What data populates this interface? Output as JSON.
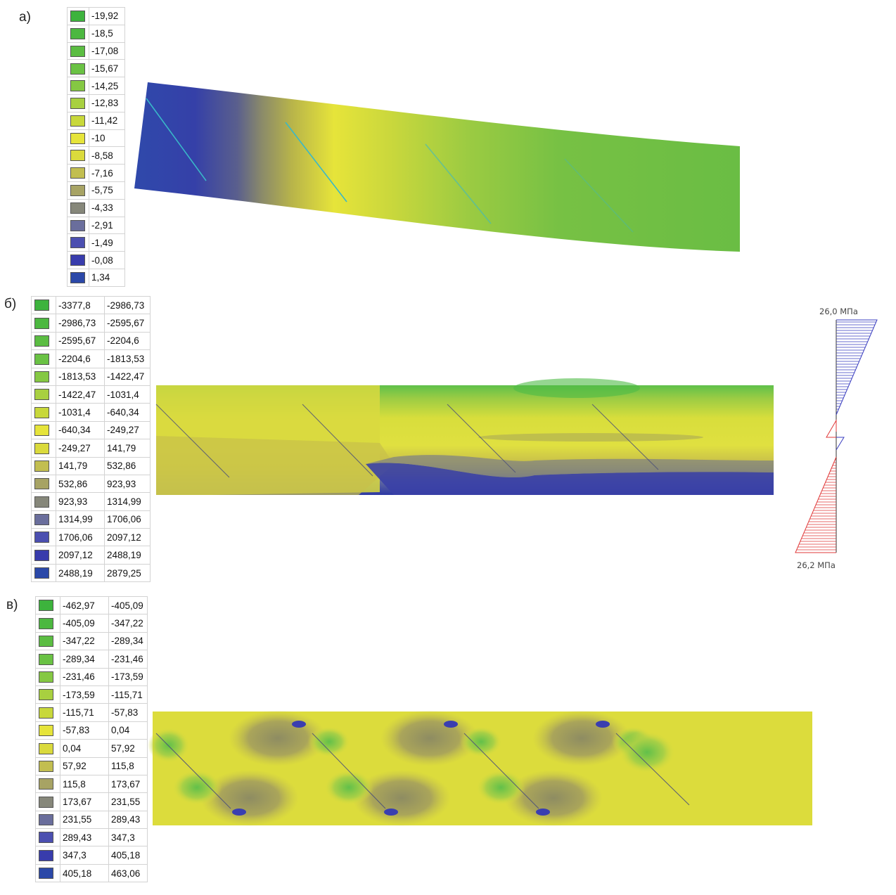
{
  "panels": {
    "a": {
      "label": "а)",
      "legend": [
        "-19,92",
        "-18,5",
        "-17,08",
        "-15,67",
        "-14,25",
        "-12,83",
        "-11,42",
        "-10",
        "-8,58",
        "-7,16",
        "-5,75",
        "-4,33",
        "-2,91",
        "-1,49",
        "-0,08",
        "1,34"
      ]
    },
    "b": {
      "label": "б)",
      "legend": [
        [
          "-3377,8",
          "-2986,73"
        ],
        [
          "-2986,73",
          "-2595,67"
        ],
        [
          "-2595,67",
          "-2204,6"
        ],
        [
          "-2204,6",
          "-1813,53"
        ],
        [
          "-1813,53",
          "-1422,47"
        ],
        [
          "-1422,47",
          "-1031,4"
        ],
        [
          "-1031,4",
          "-640,34"
        ],
        [
          "-640,34",
          "-249,27"
        ],
        [
          "-249,27",
          "141,79"
        ],
        [
          "141,79",
          "532,86"
        ],
        [
          "532,86",
          "923,93"
        ],
        [
          "923,93",
          "1314,99"
        ],
        [
          "1314,99",
          "1706,06"
        ],
        [
          "1706,06",
          "2097,12"
        ],
        [
          "2097,12",
          "2488,19"
        ],
        [
          "2488,19",
          "2879,25"
        ]
      ],
      "diagram": {
        "top_label": "26,0 МПа",
        "bottom_label": "26,2 МПа"
      }
    },
    "c": {
      "label": "в)",
      "legend": [
        [
          "-462,97",
          "-405,09"
        ],
        [
          "-405,09",
          "-347,22"
        ],
        [
          "-347,22",
          "-289,34"
        ],
        [
          "-289,34",
          "-231,46"
        ],
        [
          "-231,46",
          "-173,59"
        ],
        [
          "-173,59",
          "-115,71"
        ],
        [
          "-115,71",
          "-57,83"
        ],
        [
          "-57,83",
          "0,04"
        ],
        [
          "0,04",
          "57,92"
        ],
        [
          "57,92",
          "115,8"
        ],
        [
          "115,8",
          "173,67"
        ],
        [
          "173,67",
          "231,55"
        ],
        [
          "231,55",
          "289,43"
        ],
        [
          "289,43",
          "347,3"
        ],
        [
          "347,3",
          "405,18"
        ],
        [
          "405,18",
          "463,06"
        ]
      ]
    }
  },
  "colors": {
    "scale": [
      "#3db33d",
      "#4cb840",
      "#5bbd42",
      "#6ac244",
      "#85c843",
      "#a8d040",
      "#c8d83a",
      "#e6e43a",
      "#dada3c",
      "#c2be50",
      "#a7a364",
      "#86877a",
      "#6a6e9c",
      "#4b4fb0",
      "#383cac",
      "#2b48a8"
    ],
    "arrow_compression": "#3a3ec0",
    "arrow_tension": "#e03838",
    "reinforcement": "#4a4f7a"
  }
}
